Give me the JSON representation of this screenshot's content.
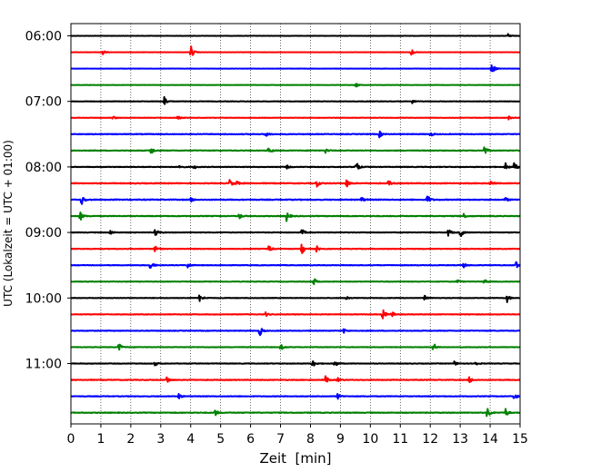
{
  "chart_data": {
    "type": "line",
    "title": "",
    "xlabel": "Zeit  [min]",
    "ylabel": "UTC (Lokalzeit = UTC + 01:00)",
    "xlim": [
      0,
      15
    ],
    "xticks": [
      0,
      1,
      2,
      3,
      4,
      5,
      6,
      7,
      8,
      9,
      10,
      11,
      12,
      13,
      14,
      15
    ],
    "y_tick_labels": [
      "06:00",
      "07:00",
      "08:00",
      "09:00",
      "10:00",
      "11:00"
    ],
    "trace_times": [
      "06:00",
      "06:15",
      "06:30",
      "06:45",
      "07:00",
      "07:15",
      "07:30",
      "07:45",
      "08:00",
      "08:15",
      "08:30",
      "08:45",
      "09:00",
      "09:15",
      "09:30",
      "09:45",
      "10:00",
      "10:15",
      "10:30",
      "10:45",
      "11:00",
      "11:15",
      "11:30",
      "11:45"
    ],
    "trace_colors": [
      "#000000",
      "#ff0000",
      "#0000ff",
      "#008000"
    ],
    "vertical_grid": "dotted",
    "events": [
      [
        [
          14.6,
          0.6
        ]
      ],
      [
        [
          1.05,
          0.8
        ],
        [
          4.0,
          2.0
        ],
        [
          11.35,
          1.0
        ]
      ],
      [
        [
          14.05,
          2.0
        ]
      ],
      [
        [
          9.5,
          0.8
        ]
      ],
      [
        [
          3.1,
          1.8
        ],
        [
          11.4,
          0.5
        ]
      ],
      [
        [
          3.55,
          0.9
        ],
        [
          1.4,
          0.5
        ],
        [
          14.6,
          0.6
        ]
      ],
      [
        [
          6.5,
          0.8
        ],
        [
          10.3,
          0.9
        ],
        [
          12.0,
          0.6
        ]
      ],
      [
        [
          2.65,
          1.6
        ],
        [
          6.6,
          1.2
        ],
        [
          13.8,
          1.4
        ],
        [
          8.5,
          0.7
        ]
      ],
      [
        [
          9.5,
          2.2
        ],
        [
          14.5,
          1.2
        ],
        [
          14.8,
          1.2
        ],
        [
          3.6,
          0.6
        ],
        [
          4.1,
          0.6
        ],
        [
          7.2,
          0.5
        ]
      ],
      [
        [
          5.3,
          1.0
        ],
        [
          5.5,
          0.8
        ],
        [
          8.2,
          1.0
        ],
        [
          9.2,
          1.1
        ],
        [
          10.6,
          0.8
        ],
        [
          14.0,
          0.6
        ]
      ],
      [
        [
          0.35,
          1.6
        ],
        [
          4.0,
          0.6
        ],
        [
          11.9,
          1.5
        ],
        [
          9.7,
          0.7
        ],
        [
          14.5,
          0.6
        ]
      ],
      [
        [
          0.3,
          1.4
        ],
        [
          5.6,
          1.0
        ],
        [
          7.2,
          1.4
        ],
        [
          13.1,
          0.7
        ]
      ],
      [
        [
          2.8,
          1.6
        ],
        [
          1.3,
          0.7
        ],
        [
          7.7,
          1.1
        ],
        [
          12.6,
          1.1
        ],
        [
          13.0,
          1.4
        ]
      ],
      [
        [
          6.6,
          1.1
        ],
        [
          7.7,
          1.8
        ],
        [
          2.8,
          0.8
        ],
        [
          8.2,
          0.8
        ]
      ],
      [
        [
          2.65,
          1.4
        ],
        [
          3.9,
          0.8
        ],
        [
          13.1,
          0.9
        ],
        [
          14.85,
          1.2
        ]
      ],
      [
        [
          8.1,
          1.2
        ],
        [
          12.9,
          0.6
        ],
        [
          13.8,
          0.7
        ]
      ],
      [
        [
          4.3,
          1.5
        ],
        [
          9.2,
          0.7
        ],
        [
          11.8,
          0.7
        ],
        [
          14.55,
          1.4
        ]
      ],
      [
        [
          10.4,
          1.8
        ],
        [
          10.7,
          0.9
        ],
        [
          6.5,
          0.6
        ]
      ],
      [
        [
          6.3,
          1.6
        ],
        [
          9.1,
          0.7
        ]
      ],
      [
        [
          1.6,
          1.2
        ],
        [
          7.0,
          0.9
        ],
        [
          12.1,
          1.3
        ]
      ],
      [
        [
          8.05,
          1.4
        ],
        [
          8.8,
          1.1
        ],
        [
          2.8,
          0.6
        ],
        [
          12.8,
          0.6
        ],
        [
          13.5,
          0.6
        ]
      ],
      [
        [
          3.2,
          1.0
        ],
        [
          8.5,
          1.1
        ],
        [
          8.9,
          0.6
        ],
        [
          13.3,
          1.0
        ]
      ],
      [
        [
          3.6,
          0.8
        ],
        [
          8.9,
          0.8
        ],
        [
          14.8,
          1.2
        ]
      ],
      [
        [
          4.8,
          1.0
        ],
        [
          13.9,
          2.0
        ],
        [
          14.5,
          1.4
        ]
      ]
    ],
    "noise_levels": [
      0.1,
      0.09,
      0.08,
      0.1,
      0.15,
      0.14,
      0.25,
      0.22,
      0.22,
      0.28,
      0.3,
      0.25,
      0.2,
      0.22,
      0.2,
      0.18,
      0.18,
      0.2,
      0.2,
      0.18,
      0.2,
      0.24,
      0.22,
      0.24
    ]
  }
}
